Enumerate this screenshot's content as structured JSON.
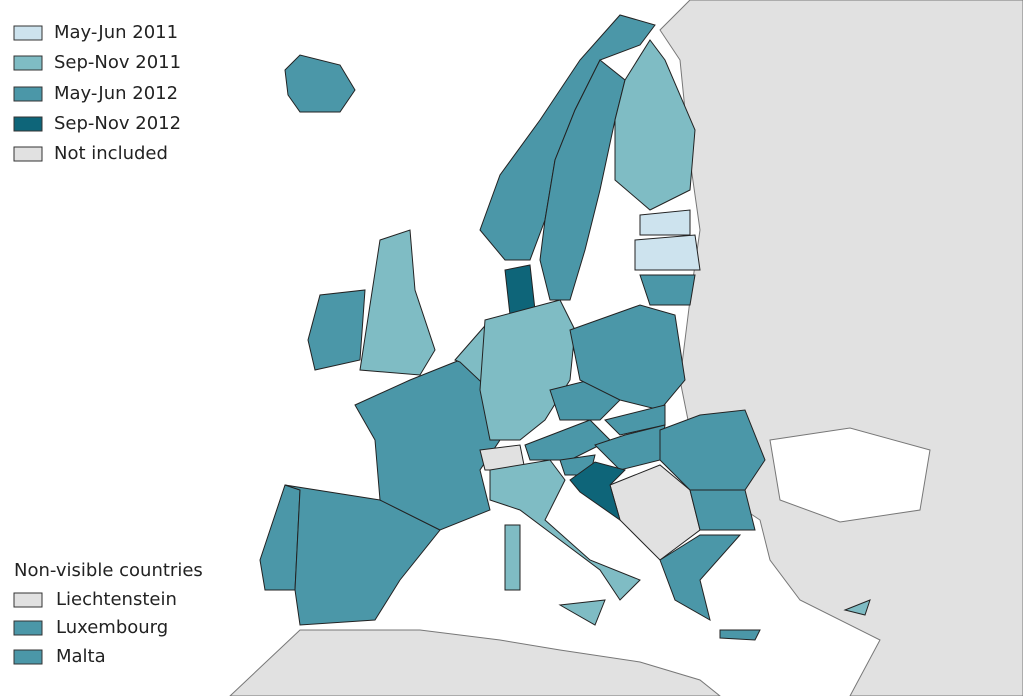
{
  "legend": [
    {
      "label": "May-Jun 2011",
      "color": "#cde3ee"
    },
    {
      "label": "Sep-Nov 2011",
      "color": "#7fbcc4"
    },
    {
      "label": "May-Jun 2012",
      "color": "#4b97a8"
    },
    {
      "label": "Sep-Nov 2012",
      "color": "#0e6579"
    },
    {
      "label": "Not included",
      "color": "#e1e1e1"
    }
  ],
  "non_visible": {
    "title": "Non-visible countries",
    "items": [
      {
        "label": "Liechtenstein",
        "color": "#e1e1e1"
      },
      {
        "label": "Luxembourg",
        "color": "#4b97a8"
      },
      {
        "label": "Malta",
        "color": "#4b97a8"
      }
    ]
  }
}
